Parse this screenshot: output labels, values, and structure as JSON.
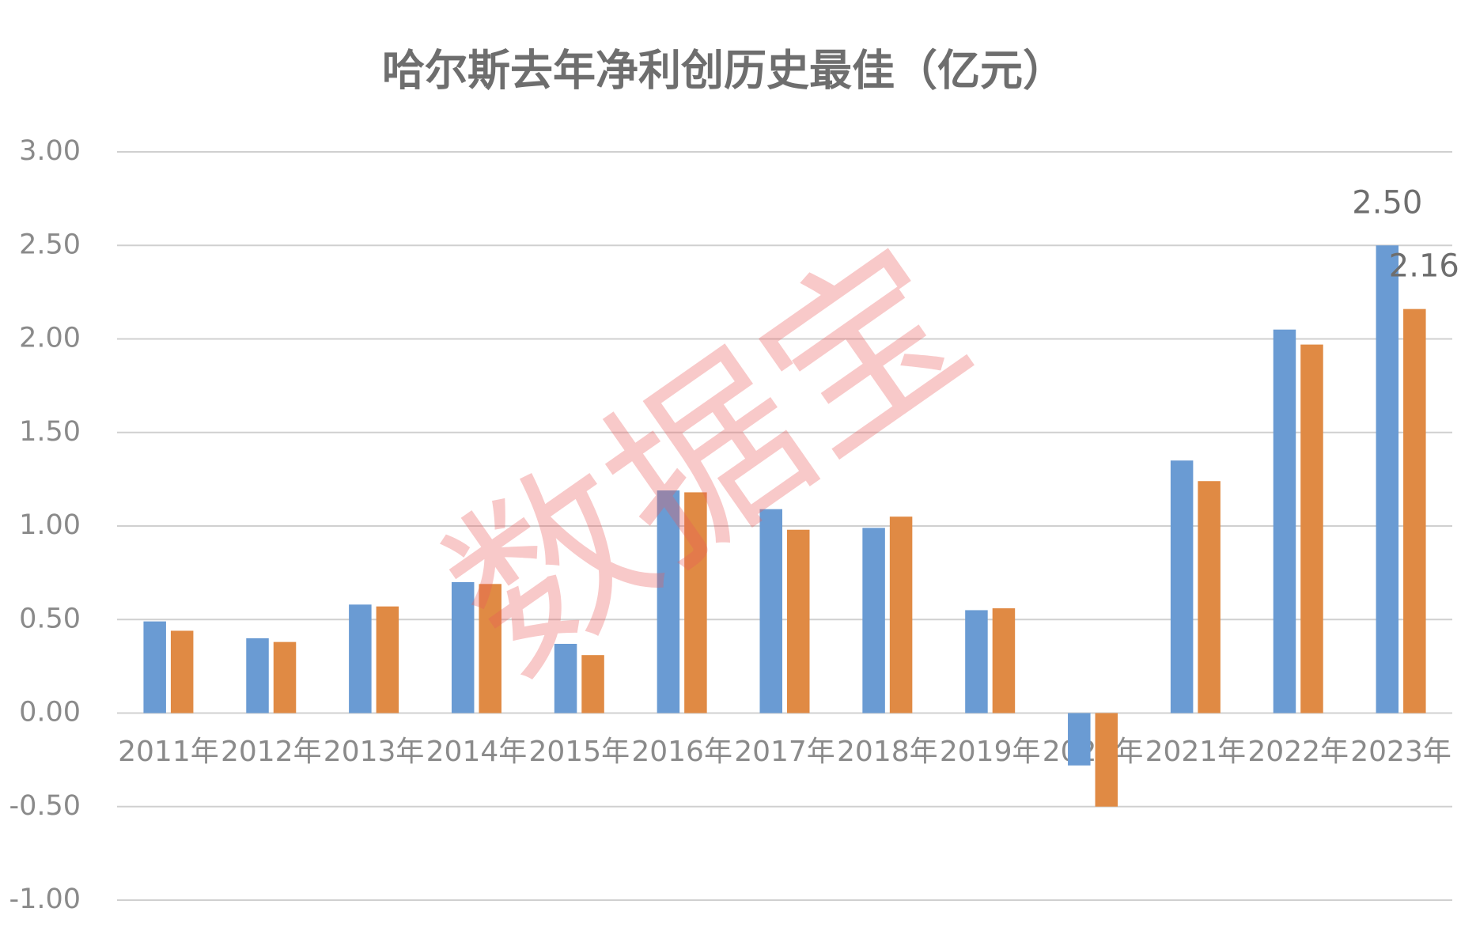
{
  "chart_data": {
    "type": "bar",
    "title": "哈尔斯去年净利创历史最佳（亿元）",
    "watermark": "数据宝",
    "categories": [
      "2011年",
      "2012年",
      "2013年",
      "2014年",
      "2015年",
      "2016年",
      "2017年",
      "2018年",
      "2019年",
      "2020年",
      "2021年",
      "2022年",
      "2023年"
    ],
    "series": [
      {
        "color": "#6a9bd3",
        "values": [
          0.49,
          0.4,
          0.58,
          0.7,
          0.37,
          1.19,
          1.09,
          0.99,
          0.55,
          -0.28,
          1.35,
          2.05,
          2.5
        ],
        "value_labels": [
          null,
          null,
          null,
          null,
          null,
          null,
          null,
          null,
          null,
          null,
          null,
          null,
          "2.50"
        ]
      },
      {
        "color": "#e08a44",
        "values": [
          0.44,
          0.38,
          0.57,
          0.69,
          0.31,
          1.18,
          0.98,
          1.05,
          0.56,
          -0.5,
          1.24,
          1.97,
          2.16
        ],
        "value_labels": [
          null,
          null,
          null,
          null,
          null,
          null,
          null,
          null,
          null,
          null,
          null,
          null,
          "2.16"
        ]
      }
    ],
    "ylim": [
      -1,
      3
    ],
    "yticks": [
      {
        "value": -1,
        "label": "-1.00"
      },
      {
        "value": -0.5,
        "label": "-0.50"
      },
      {
        "value": 0,
        "label": "0.00"
      },
      {
        "value": 0.5,
        "label": "0.50"
      },
      {
        "value": 1,
        "label": "1.00"
      },
      {
        "value": 1.5,
        "label": "1.50"
      },
      {
        "value": 2,
        "label": "2.00"
      },
      {
        "value": 2.5,
        "label": "2.50"
      },
      {
        "value": 3,
        "label": "3.00"
      }
    ],
    "grid": true
  }
}
